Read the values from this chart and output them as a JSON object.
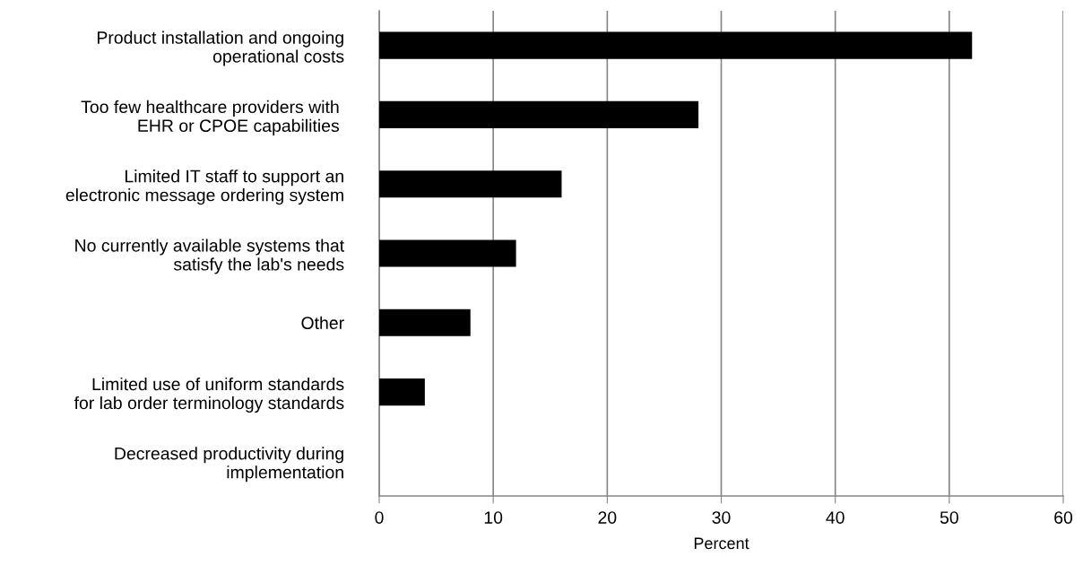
{
  "chart_data": {
    "type": "bar",
    "orientation": "horizontal",
    "categories": [
      "Product installation and ongoing\noperational costs",
      "Too few healthcare providers with \nEHR or CPOE capabilities ",
      "Limited IT staff to support an\nelectronic message ordering system",
      "No currently available systems that\nsatisfy the lab's needs",
      "Other",
      "Limited use of uniform standards\nfor lab order terminology standards",
      "Decreased productivity during\nimplementation"
    ],
    "values": [
      52,
      28,
      16,
      12,
      8,
      4,
      0
    ],
    "color": "#000000",
    "xlabel": "Percent",
    "xlim": [
      0,
      60
    ],
    "xticks": [
      0,
      10,
      20,
      30,
      40,
      50,
      60
    ],
    "grid": "x"
  }
}
